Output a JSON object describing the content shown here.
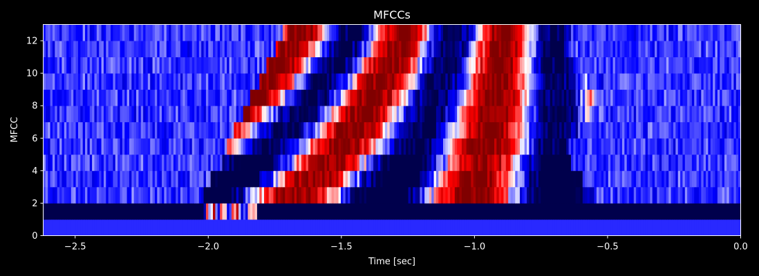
{
  "chart_data": {
    "type": "heatmap",
    "title": "MFCCs",
    "xlabel": "Time [sec]",
    "ylabel": "MFCC",
    "xlim": [
      -2.62,
      0.0
    ],
    "ylim": [
      0,
      13
    ],
    "x_ticks": [
      {
        "value": -2.5,
        "label": "−2.5"
      },
      {
        "value": -2.0,
        "label": "−2.0"
      },
      {
        "value": -1.5,
        "label": "−1.5"
      },
      {
        "value": -1.0,
        "label": "−1.0"
      },
      {
        "value": -0.5,
        "label": "−0.5"
      },
      {
        "value": 0.0,
        "label": "0.0"
      }
    ],
    "y_ticks": [
      {
        "value": 0,
        "label": "0"
      },
      {
        "value": 2,
        "label": "2"
      },
      {
        "value": 4,
        "label": "4"
      },
      {
        "value": 6,
        "label": "6"
      },
      {
        "value": 8,
        "label": "8"
      },
      {
        "value": 10,
        "label": "10"
      },
      {
        "value": 12,
        "label": "12"
      }
    ],
    "colormap": "seismic",
    "color_range": [
      -1,
      1
    ],
    "rows": 13,
    "grid": false,
    "speech_segment_sec": [
      -2.02,
      -0.6
    ]
  },
  "colors": {
    "background": "#000000",
    "foreground": "#ffffff",
    "colormap_stops": [
      "#00004c",
      "#0000ff",
      "#ffffff",
      "#ff0000",
      "#800000"
    ]
  }
}
